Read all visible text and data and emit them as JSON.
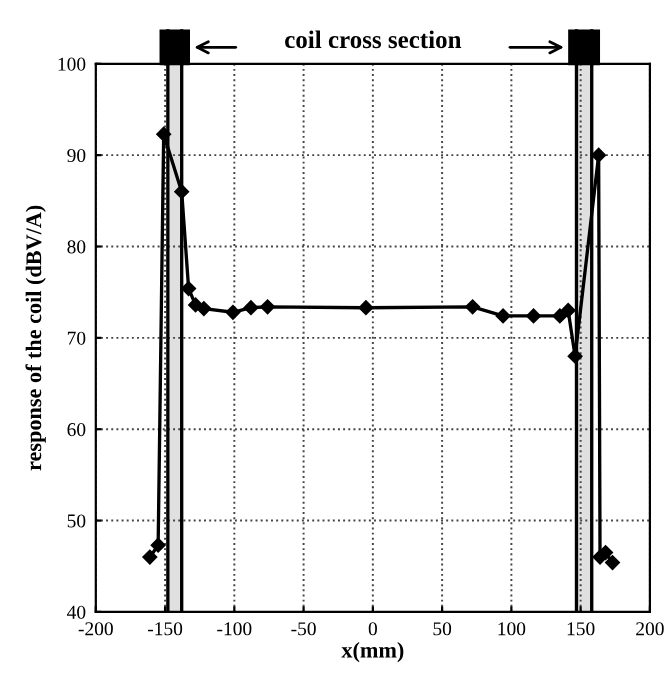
{
  "chart_data": {
    "type": "line",
    "xlabel": "x(mm)",
    "ylabel": "response of the coil (dBV/A)",
    "annotations": [
      "coil cross section"
    ],
    "series": [
      {
        "color": "#000000",
        "x": [
          -161,
          -155,
          -151,
          -138,
          -133,
          -128,
          -122,
          -101,
          -88,
          -76,
          -5,
          72,
          94,
          116,
          135,
          141,
          146,
          163,
          164,
          168,
          173
        ],
        "values": [
          46,
          47.3,
          92.3,
          86,
          75.4,
          73.6,
          73.2,
          72.8,
          73.3,
          73.4,
          73.3,
          73.4,
          72.4,
          72.4,
          72.4,
          73,
          68,
          90,
          46,
          46.5,
          45.4
        ]
      }
    ],
    "bands": [
      {
        "axis": "x",
        "from": -148,
        "to": -138,
        "color": "#000000"
      },
      {
        "axis": "x",
        "from": 147,
        "to": 158,
        "color": "#000000"
      }
    ],
    "xlim": [
      -200,
      200
    ],
    "xticks": [
      -200,
      -150,
      -100,
      -50,
      0,
      50,
      100,
      150,
      200
    ],
    "ylim": [
      40,
      100
    ],
    "yticks": [
      40,
      50,
      60,
      70,
      80,
      90,
      100
    ],
    "grid": true,
    "marker": "diamond",
    "line_style": "solid",
    "legend": false
  }
}
